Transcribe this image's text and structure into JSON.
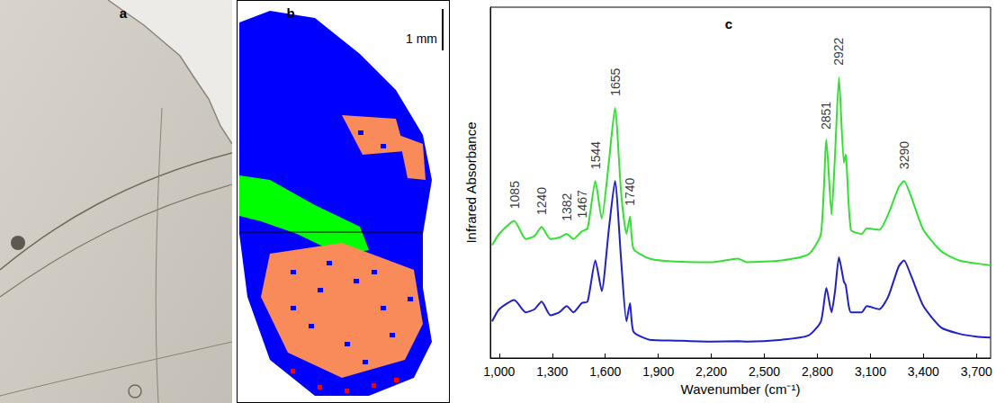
{
  "panel_a": {
    "label": "a"
  },
  "panel_b": {
    "label": "b",
    "scale_bar": "1 mm"
  },
  "chart_data": {
    "type": "line",
    "title": "c",
    "x_label": "Wavenumber (cm⁻¹)",
    "y_label": "Infrared Absorbance",
    "xlim": [
      950,
      3780
    ],
    "xticks": [
      1000,
      1300,
      1600,
      1900,
      2200,
      2500,
      2800,
      3100,
      3400,
      3700
    ],
    "ylim": [
      0,
      115
    ],
    "tick_labels": "x",
    "grid": false,
    "x": [
      960,
      1000,
      1085,
      1150,
      1200,
      1240,
      1290,
      1340,
      1382,
      1420,
      1467,
      1500,
      1544,
      1580,
      1620,
      1655,
      1690,
      1720,
      1740,
      1760,
      1850,
      2000,
      2200,
      2350,
      2400,
      2600,
      2750,
      2820,
      2851,
      2880,
      2900,
      2922,
      2950,
      2960,
      2990,
      3050,
      3080,
      3150,
      3200,
      3260,
      3290,
      3330,
      3400,
      3500,
      3600,
      3700,
      3780
    ],
    "series": [
      {
        "color": "#33e033",
        "values": [
          37,
          40.7,
          45,
          39,
          40,
          43,
          39,
          39.5,
          40.7,
          39,
          41.5,
          42.5,
          58,
          45.7,
          64,
          82,
          54,
          40.7,
          46.4,
          35.8,
          32.6,
          31.6,
          31.4,
          32.6,
          31.4,
          32,
          34,
          40.7,
          71.6,
          47,
          66.7,
          92,
          64,
          66.7,
          42,
          40.7,
          42.5,
          42,
          47,
          56,
          58,
          53,
          42,
          35,
          32,
          31,
          30.4
        ]
      },
      {
        "color": "#2020c8",
        "values": [
          12,
          16,
          19,
          15,
          16,
          18.5,
          14,
          15,
          17,
          15,
          18,
          18.5,
          32,
          22,
          42,
          58,
          32,
          12,
          18,
          8.6,
          6,
          5.7,
          5.4,
          5.5,
          5.4,
          6,
          7.4,
          12,
          23,
          15,
          22,
          33,
          25,
          24,
          15,
          15,
          17,
          16,
          20,
          30,
          32,
          27,
          17,
          10,
          8,
          7,
          6.7
        ]
      }
    ],
    "annotations": [
      {
        "text": "1085",
        "x": 1085,
        "y": 48
      },
      {
        "text": "1240",
        "x": 1240,
        "y": 46
      },
      {
        "text": "1382",
        "x": 1382,
        "y": 44
      },
      {
        "text": "1467",
        "x": 1467,
        "y": 45
      },
      {
        "text": "1544",
        "x": 1544,
        "y": 61
      },
      {
        "text": "1655",
        "x": 1655,
        "y": 85
      },
      {
        "text": "1740",
        "x": 1740,
        "y": 49
      },
      {
        "text": "2851",
        "x": 2851,
        "y": 74
      },
      {
        "text": "2922",
        "x": 2922,
        "y": 95
      },
      {
        "text": "3290",
        "x": 3290,
        "y": 61
      }
    ]
  }
}
